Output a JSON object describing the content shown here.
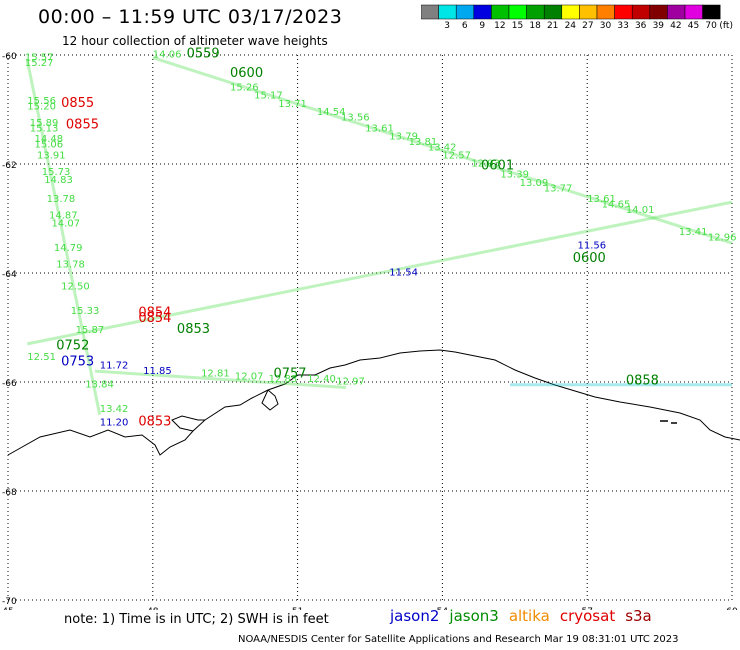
{
  "header": {
    "title": "00:00 – 11:59 UTC 03/17/2023",
    "subtitle": "12 hour collection of altimeter wave heights"
  },
  "colorbar": {
    "unit_label": "(ft)",
    "bins": [
      {
        "label": "",
        "color": "#808080"
      },
      {
        "label": "3",
        "color": "#00e5e5"
      },
      {
        "label": "6",
        "color": "#00a8f0"
      },
      {
        "label": "9",
        "color": "#0000e0"
      },
      {
        "label": "12",
        "color": "#00c000"
      },
      {
        "label": "15",
        "color": "#00ff00"
      },
      {
        "label": "18",
        "color": "#00a000"
      },
      {
        "label": "21",
        "color": "#008000"
      },
      {
        "label": "24",
        "color": "#ffff00"
      },
      {
        "label": "27",
        "color": "#ffc000"
      },
      {
        "label": "30",
        "color": "#ff8000"
      },
      {
        "label": "33",
        "color": "#ff0000"
      },
      {
        "label": "36",
        "color": "#c00000"
      },
      {
        "label": "39",
        "color": "#800000"
      },
      {
        "label": "42",
        "color": "#a000a0"
      },
      {
        "label": "45",
        "color": "#e000e0"
      },
      {
        "label": "70",
        "color": "#000000"
      }
    ]
  },
  "axes": {
    "lon_ticks": [
      "45",
      "48",
      "51",
      "54",
      "57",
      "60"
    ],
    "lat_ticks": [
      "-60",
      "-62",
      "-64",
      "-66",
      "-68",
      "-70"
    ]
  },
  "time_labels": [
    {
      "text": "0559",
      "color": "#008000",
      "lon": 48.7,
      "lat": -60.05
    },
    {
      "text": "0600",
      "color": "#008000",
      "lon": 49.6,
      "lat": -60.4
    },
    {
      "text": "0855",
      "color": "#e00000",
      "lon": 46.1,
      "lat": -60.95
    },
    {
      "text": "0855",
      "color": "#e00000",
      "lon": 46.2,
      "lat": -61.35
    },
    {
      "text": "0601",
      "color": "#008000",
      "lon": 54.8,
      "lat": -62.1
    },
    {
      "text": "0600",
      "color": "#008000",
      "lon": 56.7,
      "lat": -63.8
    },
    {
      "text": "0854",
      "color": "#e00000",
      "lon": 47.7,
      "lat": -64.8
    },
    {
      "text": "0854",
      "color": "#e00000",
      "lon": 47.7,
      "lat": -64.9
    },
    {
      "text": "0853",
      "color": "#008000",
      "lon": 48.5,
      "lat": -65.1
    },
    {
      "text": "0752",
      "color": "#008000",
      "lon": 46.0,
      "lat": -65.4
    },
    {
      "text": "0753",
      "color": "#0000c0",
      "lon": 46.1,
      "lat": -65.7
    },
    {
      "text": "0757",
      "color": "#008000",
      "lon": 50.5,
      "lat": -65.92
    },
    {
      "text": "0853",
      "color": "#e00000",
      "lon": 47.7,
      "lat": -66.8
    },
    {
      "text": "0858",
      "color": "#008000",
      "lon": 57.8,
      "lat": -66.05
    }
  ],
  "swh_values": [
    {
      "text": "15.57",
      "color": "#44dd44",
      "lon": 45.35,
      "lat": -60.1
    },
    {
      "text": "15.27",
      "color": "#44dd44",
      "lon": 45.35,
      "lat": -60.2
    },
    {
      "text": "15.56",
      "color": "#44dd44",
      "lon": 45.4,
      "lat": -60.9
    },
    {
      "text": "15.20",
      "color": "#44dd44",
      "lon": 45.4,
      "lat": -61.0
    },
    {
      "text": "15.89",
      "color": "#44dd44",
      "lon": 45.45,
      "lat": -61.3
    },
    {
      "text": "15.13",
      "color": "#44dd44",
      "lon": 45.45,
      "lat": -61.4
    },
    {
      "text": "14.48",
      "color": "#44dd44",
      "lon": 45.55,
      "lat": -61.6
    },
    {
      "text": "15.06",
      "color": "#44dd44",
      "lon": 45.55,
      "lat": -61.7
    },
    {
      "text": "13.91",
      "color": "#44dd44",
      "lon": 45.6,
      "lat": -61.9
    },
    {
      "text": "15.73",
      "color": "#44dd44",
      "lon": 45.7,
      "lat": -62.2
    },
    {
      "text": "14.83",
      "color": "#44dd44",
      "lon": 45.75,
      "lat": -62.35
    },
    {
      "text": "13.78",
      "color": "#44dd44",
      "lon": 45.8,
      "lat": -62.7
    },
    {
      "text": "14.87",
      "color": "#44dd44",
      "lon": 45.85,
      "lat": -63.0
    },
    {
      "text": "14.07",
      "color": "#44dd44",
      "lon": 45.9,
      "lat": -63.15
    },
    {
      "text": "14.79",
      "color": "#44dd44",
      "lon": 45.95,
      "lat": -63.6
    },
    {
      "text": "13.78",
      "color": "#44dd44",
      "lon": 46.0,
      "lat": -63.9
    },
    {
      "text": "12.50",
      "color": "#44dd44",
      "lon": 46.1,
      "lat": -64.3
    },
    {
      "text": "15.33",
      "color": "#44dd44",
      "lon": 46.3,
      "lat": -64.75
    },
    {
      "text": "15.87",
      "color": "#44dd44",
      "lon": 46.4,
      "lat": -65.1
    },
    {
      "text": "12.51",
      "color": "#44dd44",
      "lon": 45.4,
      "lat": -65.6
    },
    {
      "text": "11.72",
      "color": "#0000c0",
      "lon": 46.9,
      "lat": -65.75
    },
    {
      "text": "11.85",
      "color": "#0000c0",
      "lon": 47.8,
      "lat": -65.85
    },
    {
      "text": "13.84",
      "color": "#44dd44",
      "lon": 46.6,
      "lat": -66.1
    },
    {
      "text": "13.42",
      "color": "#44dd44",
      "lon": 46.9,
      "lat": -66.55
    },
    {
      "text": "11.20",
      "color": "#0000c0",
      "lon": 46.9,
      "lat": -66.8
    },
    {
      "text": "14.06",
      "color": "#44dd44",
      "lon": 48.0,
      "lat": -60.05
    },
    {
      "text": "15.26",
      "color": "#44dd44",
      "lon": 49.6,
      "lat": -60.65
    },
    {
      "text": "15.17",
      "color": "#44dd44",
      "lon": 50.1,
      "lat": -60.8
    },
    {
      "text": "13.71",
      "color": "#44dd44",
      "lon": 50.6,
      "lat": -60.95
    },
    {
      "text": "14.54",
      "color": "#44dd44",
      "lon": 51.4,
      "lat": -61.1
    },
    {
      "text": "13.56",
      "color": "#44dd44",
      "lon": 51.9,
      "lat": -61.2
    },
    {
      "text": "13.61",
      "color": "#44dd44",
      "lon": 52.4,
      "lat": -61.4
    },
    {
      "text": "13.79",
      "color": "#44dd44",
      "lon": 52.9,
      "lat": -61.55
    },
    {
      "text": "13.81",
      "color": "#44dd44",
      "lon": 53.3,
      "lat": -61.65
    },
    {
      "text": "13.42",
      "color": "#44dd44",
      "lon": 53.7,
      "lat": -61.75
    },
    {
      "text": "12.57",
      "color": "#44dd44",
      "lon": 54.0,
      "lat": -61.9
    },
    {
      "text": "12.93",
      "color": "#44dd44",
      "lon": 54.6,
      "lat": -62.05
    },
    {
      "text": "13.39",
      "color": "#44dd44",
      "lon": 55.2,
      "lat": -62.25
    },
    {
      "text": "13.09",
      "color": "#44dd44",
      "lon": 55.6,
      "lat": -62.4
    },
    {
      "text": "13.77",
      "color": "#44dd44",
      "lon": 56.1,
      "lat": -62.5
    },
    {
      "text": "13.61",
      "color": "#44dd44",
      "lon": 57.0,
      "lat": -62.7
    },
    {
      "text": "14.65",
      "color": "#44dd44",
      "lon": 57.3,
      "lat": -62.8
    },
    {
      "text": "14.01",
      "color": "#44dd44",
      "lon": 57.8,
      "lat": -62.9
    },
    {
      "text": "13.41",
      "color": "#44dd44",
      "lon": 58.9,
      "lat": -63.3
    },
    {
      "text": "12.96",
      "color": "#44dd44",
      "lon": 59.5,
      "lat": -63.4
    },
    {
      "text": "11.56",
      "color": "#0000c0",
      "lon": 56.8,
      "lat": -63.55
    },
    {
      "text": "11.54",
      "color": "#0000c0",
      "lon": 52.9,
      "lat": -64.05
    },
    {
      "text": "12.81",
      "color": "#44dd44",
      "lon": 49.0,
      "lat": -65.9
    },
    {
      "text": "12.07",
      "color": "#44dd44",
      "lon": 49.7,
      "lat": -65.95
    },
    {
      "text": "12.83",
      "color": "#44dd44",
      "lon": 50.4,
      "lat": -66.0
    },
    {
      "text": "12.40",
      "color": "#44dd44",
      "lon": 51.2,
      "lat": -66.0
    },
    {
      "text": "12.97",
      "color": "#44dd44",
      "lon": 51.8,
      "lat": -66.05
    }
  ],
  "tracks": [
    {
      "name": "altika-descending",
      "color": "#44dd44",
      "from": [
        48.0,
        -60.05
      ],
      "to": [
        60.0,
        -63.45
      ]
    },
    {
      "name": "jason3-ascending",
      "color": "#44dd44",
      "from": [
        45.4,
        -65.3
      ],
      "to": [
        60.0,
        -62.7
      ]
    },
    {
      "name": "altika-west-column",
      "color": "#44dd44",
      "from": [
        45.4,
        -60.1
      ],
      "to": [
        46.9,
        -66.6
      ]
    },
    {
      "name": "jason3-coast",
      "color": "#44dd44",
      "from": [
        46.8,
        -65.8
      ],
      "to": [
        52.0,
        -66.1
      ]
    },
    {
      "name": "cryosat-ice-edge",
      "color": "#00c0d0",
      "from": [
        55.4,
        -66.05
      ],
      "to": [
        60.0,
        -66.05
      ]
    }
  ],
  "footer": {
    "note": "note:  1) Time is in UTC;  2) SWH is in feet",
    "legend": [
      {
        "name": "jason2",
        "color": "#0000c8"
      },
      {
        "name": "jason3",
        "color": "#008c00"
      },
      {
        "name": "altika",
        "color": "#f08c00"
      },
      {
        "name": "cryosat",
        "color": "#e00000"
      },
      {
        "name": "s3a",
        "color": "#a00000"
      }
    ],
    "credit": "NOAA/NESDIS Center for Satellite Applications and Research    Mar 19 08:31:01 UTC 2023"
  }
}
